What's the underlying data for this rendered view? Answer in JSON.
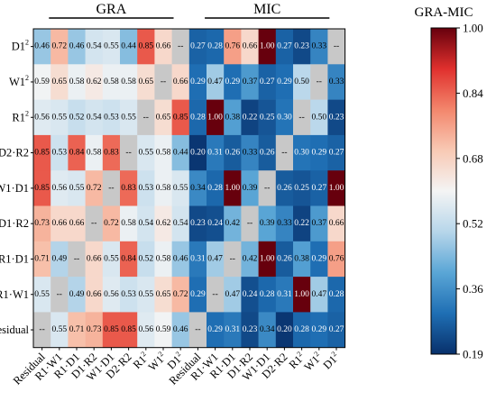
{
  "chart_data": {
    "type": "heatmap",
    "group_titles": [
      "GRA",
      "MIC"
    ],
    "colorbar": {
      "title": "GRA-MIC",
      "ticks": [
        "1.00",
        "0.84",
        "0.68",
        "0.52",
        "0.36",
        "0.19"
      ],
      "range": [
        0.19,
        1.0
      ],
      "colors": [
        "#08306b",
        "#1f6fb4",
        "#5aa6d6",
        "#b7d6ea",
        "#f4f4f4",
        "#f8c9b4",
        "#f3866c",
        "#e0302d",
        "#67000d"
      ]
    },
    "missing_color": "#c8c8c8",
    "rows": [
      "D1²",
      "W1²",
      "R1²",
      "D2·R2",
      "W1·D1",
      "D1·R2",
      "R1·D1",
      "R1·W1",
      "Residual"
    ],
    "columns": [
      "Residual",
      "R1·W1",
      "R1·D1",
      "D1·R2",
      "W1·D1",
      "D2·R2",
      "R1²",
      "W1²",
      "D1²",
      "Residual",
      "R1·W1",
      "R1·D1",
      "D1·R2",
      "W1·D1",
      "D2·R2",
      "R1²",
      "W1²",
      "D1²"
    ],
    "values": [
      [
        "0.46",
        "0.72",
        "0.46",
        "0.54",
        "0.55",
        "0.44",
        "0.85",
        "0.66",
        "--",
        "0.27",
        "0.28",
        "0.76",
        "0.66",
        "1.00",
        "0.27",
        "0.23",
        "0.33",
        "--"
      ],
      [
        "0.59",
        "0.65",
        "0.58",
        "0.62",
        "0.58",
        "0.58",
        "0.65",
        "--",
        "0.66",
        "0.29",
        "0.47",
        "0.29",
        "0.37",
        "0.27",
        "0.29",
        "0.50",
        "--",
        "0.33"
      ],
      [
        "0.56",
        "0.55",
        "0.52",
        "0.54",
        "0.53",
        "0.55",
        "--",
        "0.65",
        "0.85",
        "0.28",
        "1.00",
        "0.38",
        "0.22",
        "0.25",
        "0.30",
        "--",
        "0.50",
        "0.23"
      ],
      [
        "0.85",
        "0.53",
        "0.84",
        "0.58",
        "0.83",
        "--",
        "0.55",
        "0.58",
        "0.44",
        "0.20",
        "0.31",
        "0.26",
        "0.33",
        "0.26",
        "--",
        "0.30",
        "0.29",
        "0.27"
      ],
      [
        "0.85",
        "0.56",
        "0.55",
        "0.72",
        "--",
        "0.83",
        "0.53",
        "0.58",
        "0.55",
        "0.34",
        "0.28",
        "1.00",
        "0.39",
        "--",
        "0.26",
        "0.25",
        "0.27",
        "1.00"
      ],
      [
        "0.73",
        "0.66",
        "0.66",
        "--",
        "0.72",
        "0.58",
        "0.54",
        "0.62",
        "0.54",
        "0.23",
        "0.24",
        "0.42",
        "--",
        "0.39",
        "0.33",
        "0.22",
        "0.37",
        "0.66"
      ],
      [
        "0.71",
        "0.49",
        "--",
        "0.66",
        "0.55",
        "0.84",
        "0.52",
        "0.58",
        "0.46",
        "0.31",
        "0.47",
        "--",
        "0.42",
        "1.00",
        "0.26",
        "0.38",
        "0.29",
        "0.76"
      ],
      [
        "0.55",
        "--",
        "0.49",
        "0.66",
        "0.56",
        "0.53",
        "0.55",
        "0.65",
        "0.72",
        "0.29",
        "--",
        "0.47",
        "0.24",
        "0.28",
        "0.31",
        "1.00",
        "0.47",
        "0.28"
      ],
      [
        "--",
        "0.55",
        "0.71",
        "0.73",
        "0.85",
        "0.85",
        "0.56",
        "0.59",
        "0.46",
        "--",
        "0.29",
        "0.31",
        "0.23",
        "0.34",
        "0.20",
        "0.28",
        "0.29",
        "0.27"
      ]
    ]
  }
}
